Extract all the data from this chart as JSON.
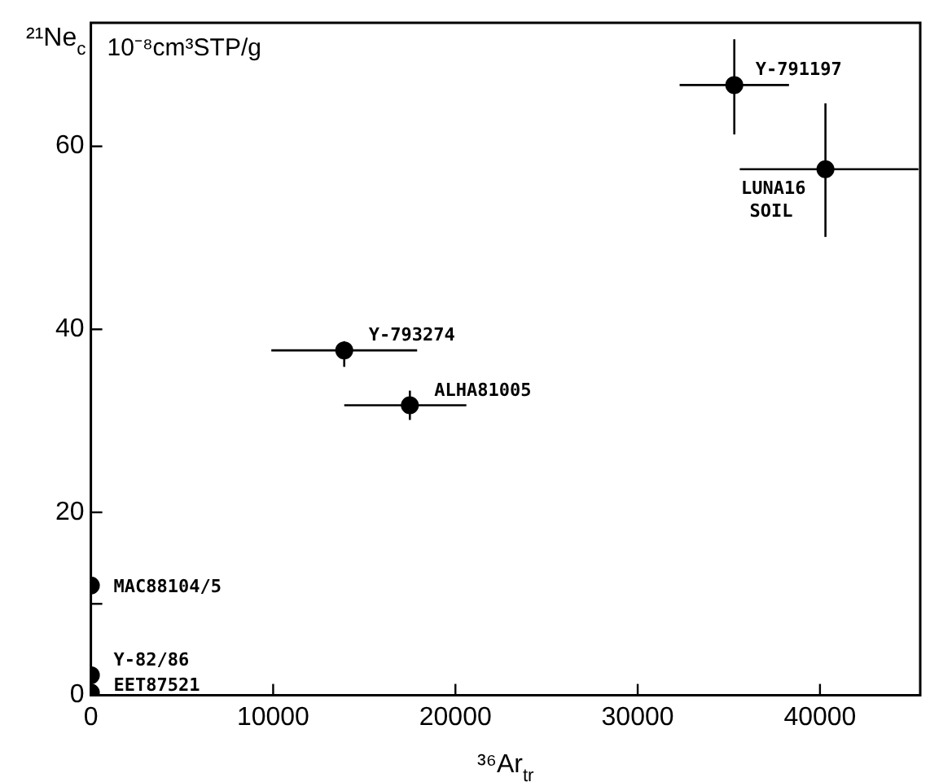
{
  "chart_data": {
    "type": "scatter",
    "ylabel": "²¹Ne$_{c}$",
    "xlabel": "³⁶Ar$_{tr}$",
    "annotations": [
      "10⁻⁸cm³STP/g",
      {
        "text": "Y-791197",
        "x": 35300,
        "y": 66.7
      },
      {
        "text": "LUNA16\nSOIL",
        "x": 40300,
        "y": 57.5
      },
      {
        "text": "Y-793274",
        "x": 13900,
        "y": 37.7
      },
      {
        "text": "ALHA81005",
        "x": 17500,
        "y": 31.7
      },
      {
        "text": "MAC88104/5",
        "x": 0,
        "y": 12
      },
      {
        "text": "Y-82/86",
        "x": 0,
        "y": 2.2
      },
      {
        "text": "EET87521",
        "x": 0,
        "y": 0.3
      }
    ],
    "series": [
      {
        "color": "#000000",
        "x": [
          35300,
          40300,
          13900,
          17500,
          0,
          0,
          0
        ],
        "values": [
          66.7,
          57.5,
          37.7,
          31.7,
          12,
          2.2,
          0.3
        ],
        "errors": [
          [
            61.3,
            71.7
          ],
          [
            50.1,
            64.7
          ],
          [
            35.9,
            38.7
          ],
          [
            30.1,
            33.3
          ],
          null,
          null,
          null
        ],
        "xerrors": [
          [
            32300,
            38300
          ],
          [
            35600,
            45400
          ],
          [
            9900,
            17900
          ],
          [
            13900,
            20600
          ],
          null,
          null,
          null
        ]
      }
    ],
    "xlim": [
      0,
      45500
    ],
    "ylim": [
      0,
      73.5
    ],
    "xticks": [
      0,
      10000,
      20000,
      30000,
      40000
    ],
    "yticks": [
      0,
      {
        "value": 10,
        "label": null
      },
      20,
      40,
      60
    ],
    "marker": "circle",
    "grid": false,
    "legend": false
  }
}
